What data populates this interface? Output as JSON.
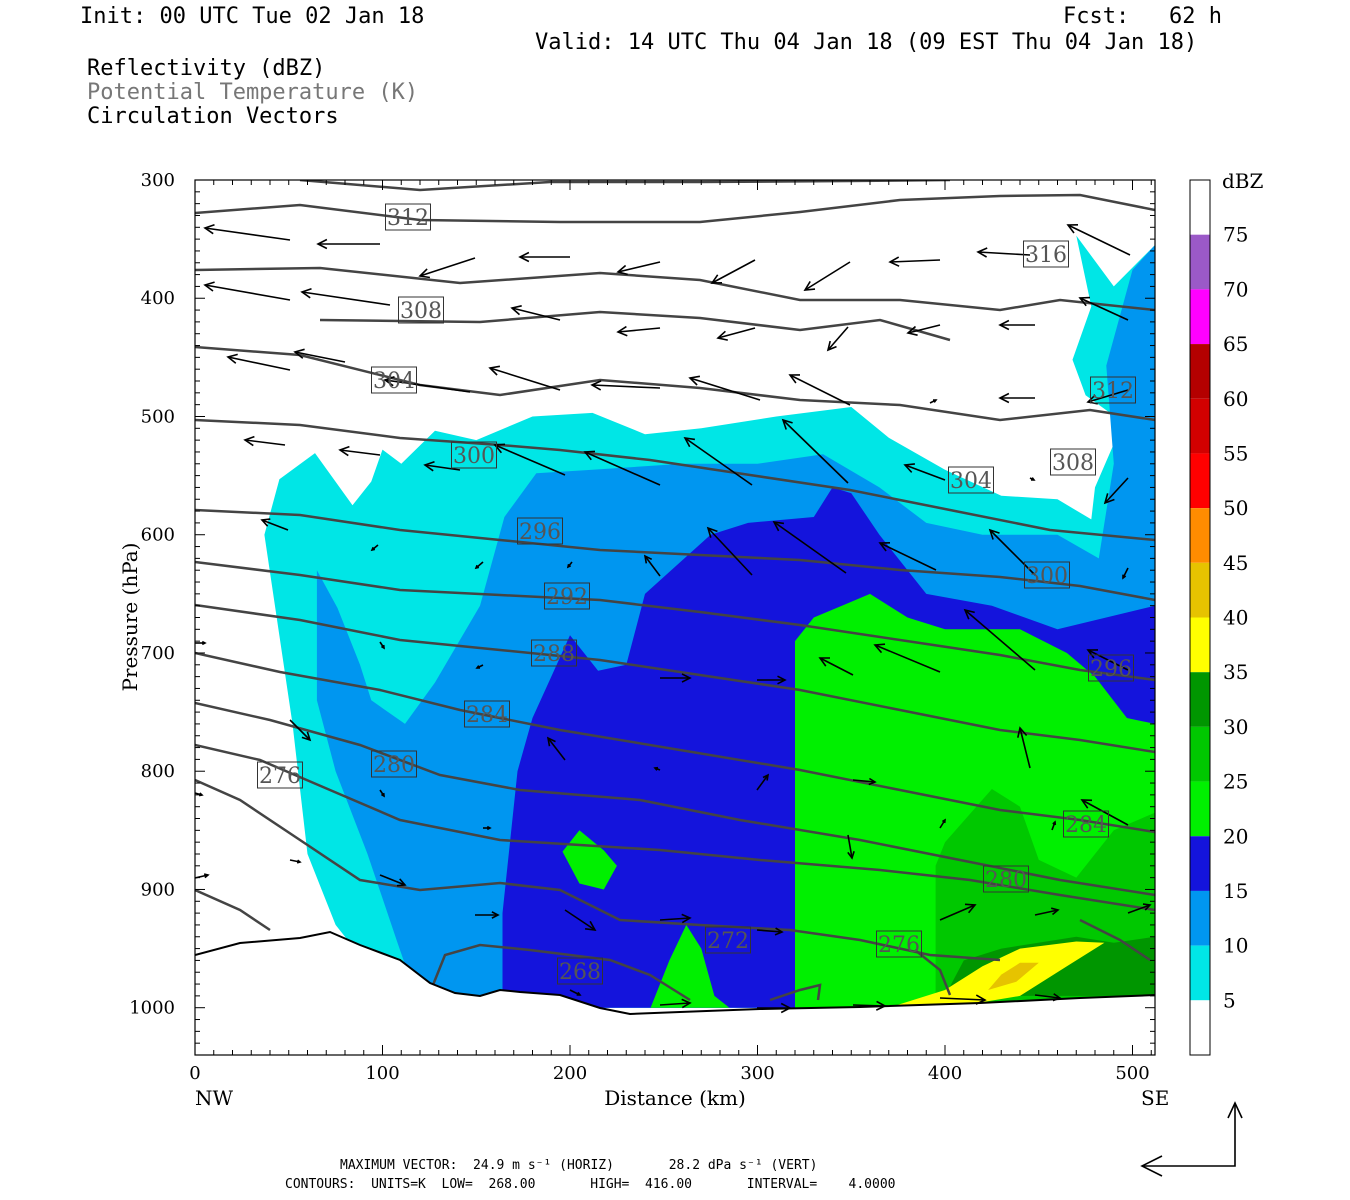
{
  "header": {
    "init": "Init: 00 UTC Tue 02 Jan 18",
    "fcst": "Fcst:   62 h",
    "valid": "Valid: 14 UTC Thu 04 Jan 18 (09 EST Thu 04 Jan 18)",
    "fields": [
      {
        "label": "Reflectivity (dBZ)",
        "color": "#000000"
      },
      {
        "label": "Potential Temperature (K)",
        "color": "#777777"
      },
      {
        "label": "Circulation Vectors",
        "color": "#000000"
      }
    ]
  },
  "footer": {
    "max_vector": "MAXIMUM VECTOR:  24.9 m s⁻¹ (HORIZ)       28.2 dPa s⁻¹ (VERT)",
    "contours": "CONTOURS:  UNITS=K  LOW=  268.00       HIGH=  416.00       INTERVAL=    4.0000"
  },
  "chart_data": {
    "type": "heatmap",
    "xlabel": "Distance (km)",
    "ylabel": "Pressure (hPa)",
    "x_ticks": [
      "0",
      "100",
      "200",
      "300",
      "400",
      "500"
    ],
    "y_ticks": [
      "300",
      "400",
      "500",
      "600",
      "700",
      "800",
      "900",
      "1000"
    ],
    "xlim": [
      0,
      512
    ],
    "ylim": [
      300,
      1040
    ],
    "x_end_labels": {
      "left": "NW",
      "right": "SE"
    },
    "colorbar": {
      "title": "dBZ",
      "labels": [
        "5",
        "10",
        "15",
        "20",
        "25",
        "30",
        "35",
        "40",
        "45",
        "50",
        "55",
        "60",
        "65",
        "70",
        "75"
      ],
      "colors": [
        "#ffffff",
        "#00e6e6",
        "#0096f0",
        "#1414dc",
        "#00f000",
        "#00c800",
        "#009600",
        "#ffff00",
        "#e6c300",
        "#ff8c00",
        "#ff0000",
        "#d20000",
        "#b40000",
        "#ff00ff",
        "#9b59c8",
        "#ffffff"
      ]
    },
    "theta_contour_labels": [
      "312",
      "316",
      "308",
      "304",
      "312",
      "300",
      "308",
      "304",
      "296",
      "300",
      "292",
      "288",
      "296",
      "284",
      "276",
      "280",
      "284",
      "280",
      "272",
      "276",
      "268"
    ],
    "theta_contours": {
      "units": "K",
      "low": 268,
      "high": 416,
      "interval": 4
    },
    "reflectivity_regions": [
      {
        "dbz_min": 5,
        "color": "#00e6e6",
        "points": [
          [
            37,
            600
          ],
          [
            45,
            553
          ],
          [
            64,
            531
          ],
          [
            84,
            575
          ],
          [
            94,
            555
          ],
          [
            100,
            528
          ],
          [
            110,
            540
          ],
          [
            128,
            512
          ],
          [
            150,
            520
          ],
          [
            180,
            500
          ],
          [
            212,
            497
          ],
          [
            240,
            515
          ],
          [
            270,
            510
          ],
          [
            310,
            500
          ],
          [
            350,
            492
          ],
          [
            370,
            518
          ],
          [
            400,
            545
          ],
          [
            430,
            567
          ],
          [
            460,
            570
          ],
          [
            478,
            587
          ],
          [
            480,
            560
          ],
          [
            495,
            505
          ],
          [
            475,
            482
          ],
          [
            468,
            452
          ],
          [
            478,
            407
          ],
          [
            470,
            347
          ],
          [
            490,
            390
          ],
          [
            512,
            355
          ],
          [
            512,
            1000
          ],
          [
            110,
            1000
          ],
          [
            95,
            970
          ],
          [
            75,
            930
          ],
          [
            60,
            870
          ],
          [
            52,
            760
          ]
        ]
      },
      {
        "dbz_min": 10,
        "color": "#0096f0",
        "points": [
          [
            65,
            630
          ],
          [
            76,
            662
          ],
          [
            88,
            710
          ],
          [
            94,
            740
          ],
          [
            112,
            760
          ],
          [
            128,
            725
          ],
          [
            152,
            660
          ],
          [
            165,
            585
          ],
          [
            182,
            548
          ],
          [
            212,
            545
          ],
          [
            260,
            540
          ],
          [
            300,
            540
          ],
          [
            335,
            532
          ],
          [
            365,
            560
          ],
          [
            390,
            590
          ],
          [
            420,
            600
          ],
          [
            460,
            600
          ],
          [
            482,
            620
          ],
          [
            490,
            540
          ],
          [
            486,
            457
          ],
          [
            500,
            376
          ],
          [
            512,
            355
          ],
          [
            512,
            1000
          ],
          [
            120,
            1000
          ],
          [
            108,
            945
          ],
          [
            92,
            870
          ],
          [
            75,
            800
          ],
          [
            65,
            740
          ]
        ]
      },
      {
        "dbz_min": 15,
        "color": "#1414dc",
        "points": [
          [
            164,
            1000
          ],
          [
            164,
            920
          ],
          [
            172,
            800
          ],
          [
            180,
            755
          ],
          [
            190,
            720
          ],
          [
            200,
            685
          ],
          [
            215,
            715
          ],
          [
            230,
            710
          ],
          [
            240,
            650
          ],
          [
            275,
            600
          ],
          [
            295,
            590
          ],
          [
            330,
            585
          ],
          [
            340,
            560
          ],
          [
            350,
            565
          ],
          [
            365,
            600
          ],
          [
            390,
            650
          ],
          [
            425,
            660
          ],
          [
            460,
            680
          ],
          [
            512,
            660
          ],
          [
            512,
            1000
          ]
        ]
      },
      {
        "dbz_min": 20,
        "color": "#00f000",
        "points": [
          [
            320,
            1000
          ],
          [
            320,
            690
          ],
          [
            330,
            670
          ],
          [
            345,
            660
          ],
          [
            360,
            650
          ],
          [
            380,
            670
          ],
          [
            400,
            680
          ],
          [
            440,
            680
          ],
          [
            465,
            700
          ],
          [
            480,
            720
          ],
          [
            497,
            755
          ],
          [
            512,
            760
          ],
          [
            512,
            1000
          ]
        ]
      },
      {
        "dbz_min": 20,
        "color": "#00f000",
        "points": [
          [
            196,
            868
          ],
          [
            205,
            850
          ],
          [
            218,
            867
          ],
          [
            225,
            880
          ],
          [
            218,
            900
          ],
          [
            205,
            895
          ]
        ]
      },
      {
        "dbz_min": 20,
        "color": "#00f000",
        "points": [
          [
            243,
            1000
          ],
          [
            253,
            960
          ],
          [
            262,
            930
          ],
          [
            270,
            950
          ],
          [
            277,
            990
          ],
          [
            285,
            1000
          ]
        ]
      },
      {
        "dbz_min": 25,
        "color": "#00c800",
        "points": [
          [
            395,
            1000
          ],
          [
            395,
            880
          ],
          [
            400,
            860
          ],
          [
            425,
            815
          ],
          [
            440,
            830
          ],
          [
            450,
            875
          ],
          [
            470,
            890
          ],
          [
            490,
            850
          ],
          [
            512,
            835
          ],
          [
            512,
            1000
          ]
        ]
      },
      {
        "dbz_min": 30,
        "color": "#009600",
        "points": [
          [
            400,
            990
          ],
          [
            410,
            960
          ],
          [
            430,
            950
          ],
          [
            470,
            940
          ],
          [
            490,
            945
          ],
          [
            512,
            940
          ],
          [
            512,
            990
          ]
        ]
      },
      {
        "dbz_min": 35,
        "color": "#ffff00",
        "points": [
          [
            370,
            1000
          ],
          [
            400,
            985
          ],
          [
            420,
            965
          ],
          [
            440,
            950
          ],
          [
            470,
            944
          ],
          [
            485,
            945
          ],
          [
            465,
            965
          ],
          [
            440,
            990
          ],
          [
            410,
            998
          ]
        ]
      },
      {
        "dbz_min": 40,
        "color": "#e6c300",
        "points": [
          [
            423,
            985
          ],
          [
            430,
            972
          ],
          [
            440,
            962
          ],
          [
            450,
            962
          ],
          [
            438,
            978
          ]
        ]
      }
    ]
  }
}
